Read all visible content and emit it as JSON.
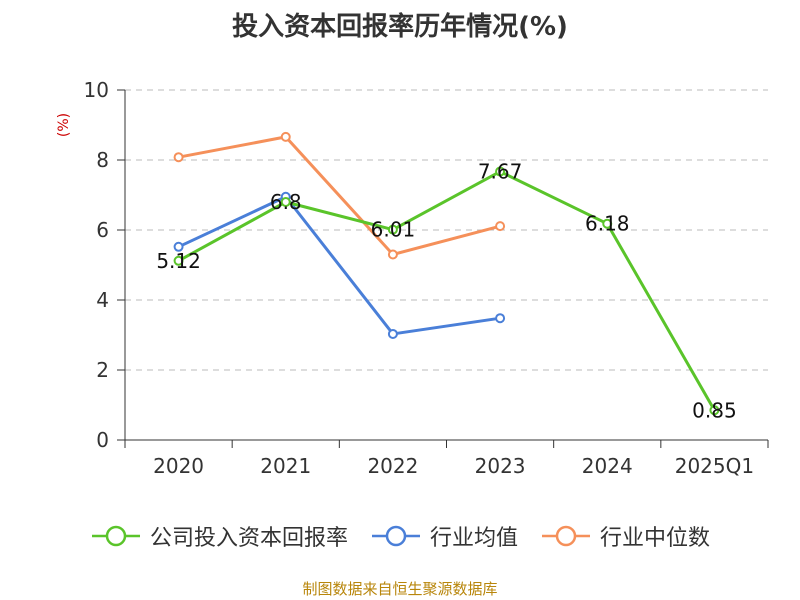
{
  "chart_data": {
    "type": "line",
    "title": "投入资本回报率历年情况(%)",
    "ylabel": "(%)",
    "categories": [
      "2020",
      "2021",
      "2022",
      "2023",
      "2024",
      "2025Q1"
    ],
    "ylim": [
      0,
      10
    ],
    "yticks": [
      0,
      2,
      4,
      6,
      8,
      10
    ],
    "grid": true,
    "legend_position": "bottom",
    "series": [
      {
        "name": "公司投入资本回报率",
        "color": "#5ac42a",
        "values": [
          5.12,
          6.8,
          6.01,
          7.67,
          6.18,
          0.85
        ],
        "labels": [
          "5.12",
          "6.8",
          "6.01",
          "7.67",
          "6.18",
          "0.85"
        ]
      },
      {
        "name": "行业均值",
        "color": "#4a7fd8",
        "values": [
          5.52,
          6.95,
          3.03,
          3.48,
          null,
          null
        ]
      },
      {
        "name": "行业中位数",
        "color": "#f5905a",
        "values": [
          8.08,
          8.66,
          5.3,
          6.11,
          null,
          null
        ]
      }
    ]
  },
  "footer": "制图数据来自恒生聚源数据库"
}
